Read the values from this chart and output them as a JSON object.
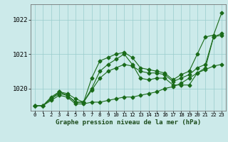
{
  "title": "Graphe pression niveau de la mer (hPa)",
  "bg_color": "#cceaea",
  "line_color": "#1a6b1a",
  "grid_color": "#99cccc",
  "xlim": [
    -0.5,
    23.5
  ],
  "ylim": [
    1019.35,
    1022.45
  ],
  "yticks": [
    1020,
    1021,
    1022
  ],
  "xticks": [
    0,
    1,
    2,
    3,
    4,
    5,
    6,
    7,
    8,
    9,
    10,
    11,
    12,
    13,
    14,
    15,
    16,
    17,
    18,
    19,
    20,
    21,
    22,
    23
  ],
  "series": [
    [
      1019.5,
      1019.5,
      1019.7,
      1019.9,
      1019.85,
      1019.7,
      1019.6,
      1020.3,
      1020.8,
      1020.9,
      1021.0,
      1021.05,
      1020.9,
      1020.6,
      1020.55,
      1020.5,
      1020.45,
      1020.25,
      1020.4,
      1020.5,
      1021.0,
      1021.5,
      1021.55,
      1022.2
    ],
    [
      1019.5,
      1019.5,
      1019.75,
      1019.9,
      1019.8,
      1019.6,
      1019.6,
      1020.0,
      1020.5,
      1020.7,
      1020.85,
      1021.0,
      1020.7,
      1020.3,
      1020.25,
      1020.3,
      1020.3,
      1020.1,
      1020.1,
      1020.1,
      1020.45,
      1020.6,
      1021.5,
      1021.55
    ],
    [
      1019.5,
      1019.5,
      1019.7,
      1019.85,
      1019.8,
      1019.6,
      1019.6,
      1019.95,
      1020.3,
      1020.5,
      1020.6,
      1020.7,
      1020.65,
      1020.5,
      1020.45,
      1020.45,
      1020.4,
      1020.2,
      1020.3,
      1020.4,
      1020.6,
      1020.7,
      1021.5,
      1021.6
    ],
    [
      1019.5,
      1019.5,
      1019.65,
      1019.8,
      1019.75,
      1019.55,
      1019.55,
      1019.6,
      1019.6,
      1019.65,
      1019.7,
      1019.75,
      1019.75,
      1019.8,
      1019.85,
      1019.9,
      1020.0,
      1020.05,
      1020.15,
      1020.3,
      1020.45,
      1020.55,
      1020.65,
      1020.7
    ]
  ],
  "marker": "D",
  "markersize": 2.5,
  "linewidth": 0.8,
  "xlabel_fontsize": 6.5,
  "ytick_fontsize": 6.5,
  "xtick_fontsize": 5.2
}
